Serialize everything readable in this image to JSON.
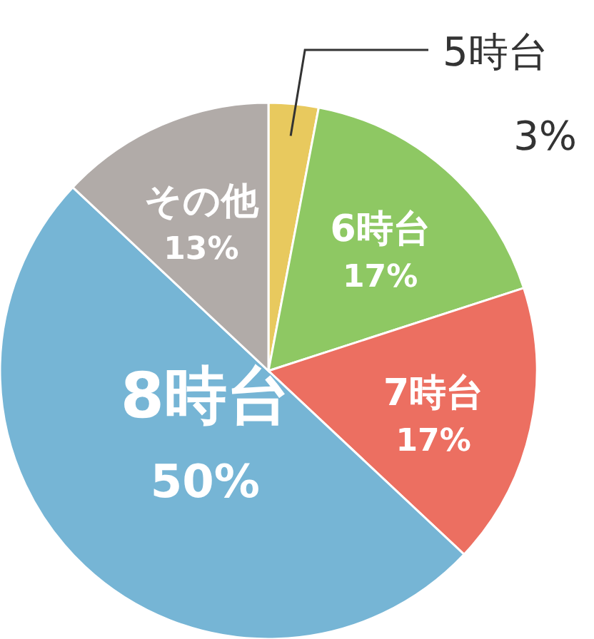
{
  "chart_data": {
    "type": "pie",
    "categories": [
      "5時台",
      "6時台",
      "7時台",
      "8時台",
      "その他"
    ],
    "values": [
      3,
      17,
      17,
      50,
      13
    ],
    "value_labels": [
      "3%",
      "17%",
      "17%",
      "50%",
      "13%"
    ],
    "colors": [
      "#e8c95e",
      "#8ec863",
      "#ec6f61",
      "#76b5d5",
      "#b1aba8"
    ]
  }
}
